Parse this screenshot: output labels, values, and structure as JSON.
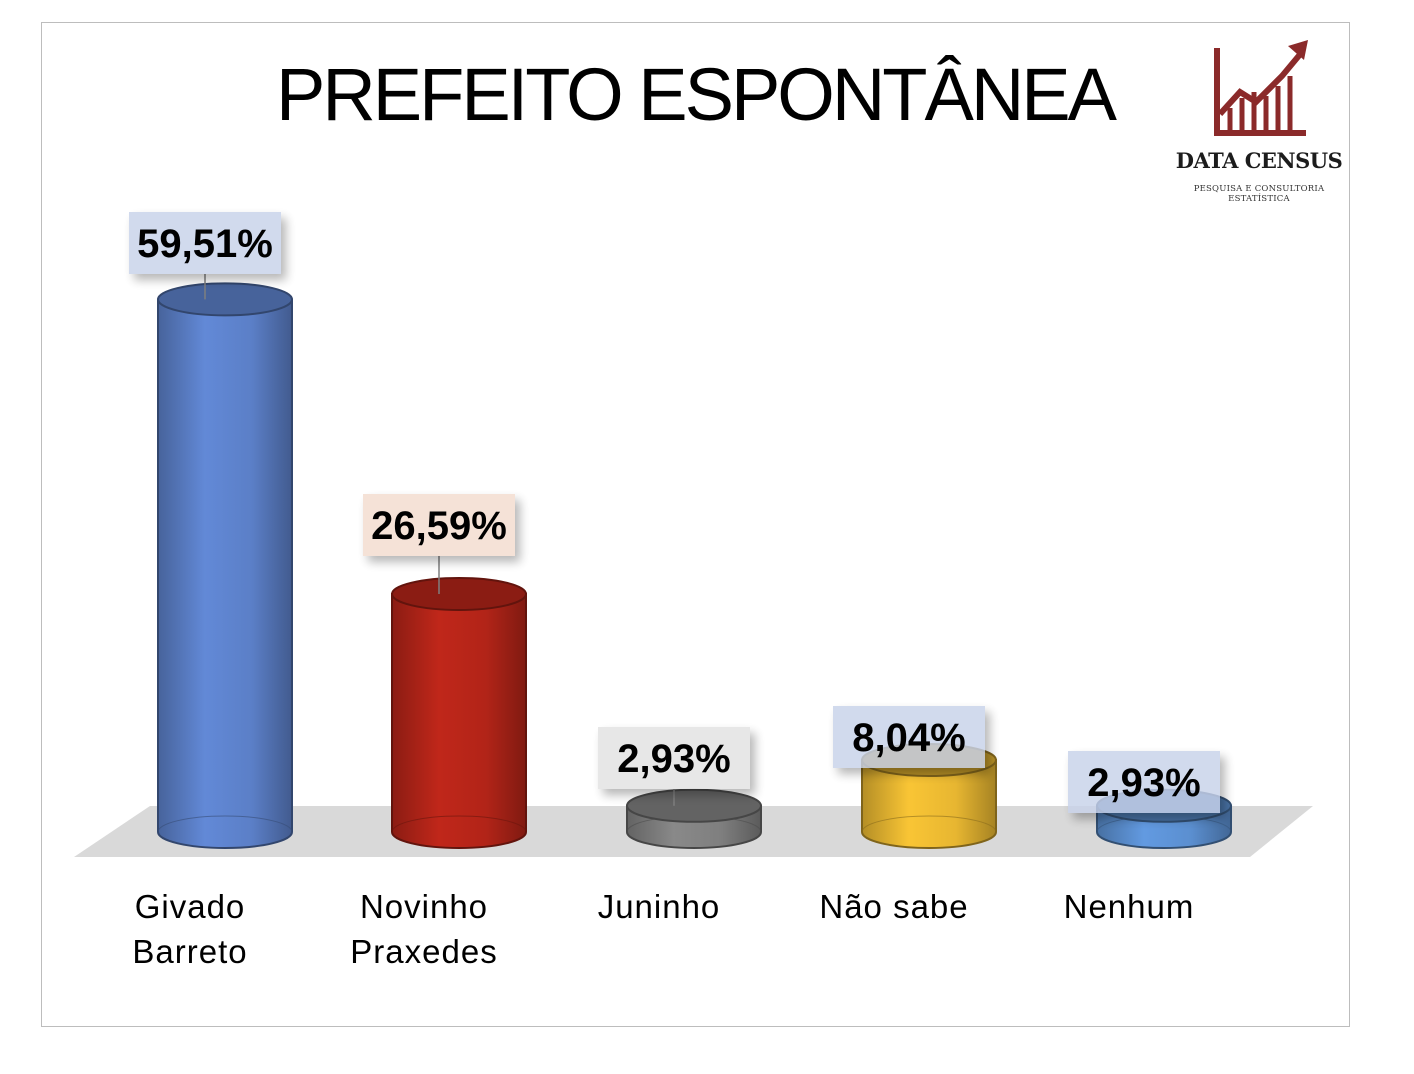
{
  "title": "PREFEITO ESPONTÂNEA",
  "brand": {
    "name": "DATA CENSUS",
    "tagline": "PESQUISA E CONSULTORIA ESTATÍSTICA",
    "logo_icon": "bar-chart-rising-arrow-icon",
    "logo_color": "#8b2a2a"
  },
  "chart_data": {
    "type": "bar",
    "style": "3d-cylinder",
    "title": "PREFEITO ESPONTÂNEA",
    "categories": [
      "Givado\nBarreto",
      "Novinho\nPraxedes",
      "Juninho",
      "Não sabe",
      "Nenhum"
    ],
    "values": [
      59.51,
      26.59,
      2.93,
      8.04,
      2.93
    ],
    "data_labels": [
      "59,51%",
      "26,59%",
      "2,93%",
      "8,04%",
      "2,93%"
    ],
    "colors": [
      "#5b7fc7",
      "#b22418",
      "#7f7f7f",
      "#e7b631",
      "#5b8fd0"
    ],
    "label_box_colors": [
      "#c8d2ea",
      "#f3dccf",
      "#e2e2e2",
      "#c8d2ea",
      "#c8d2ea"
    ],
    "unit": "%",
    "grid": false,
    "legend": "none"
  }
}
